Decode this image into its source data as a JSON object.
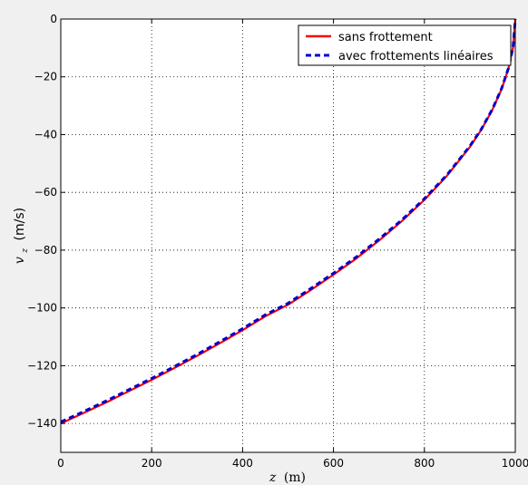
{
  "chart_data": {
    "type": "line",
    "title": "",
    "xlabel": "z (m)",
    "xlabel_var": "z",
    "xlabel_unit": "(m)",
    "ylabel": "v_z (m/s)",
    "ylabel_var": "v",
    "ylabel_sub": "z",
    "ylabel_unit": "(m/s)",
    "xlim": [
      0,
      1000
    ],
    "ylim": [
      -150,
      0
    ],
    "xticks": [
      0,
      200,
      400,
      600,
      800,
      1000
    ],
    "yticks": [
      -140,
      -120,
      -100,
      -80,
      -60,
      -40,
      -20,
      0
    ],
    "xtick_labels": [
      "0",
      "200",
      "400",
      "600",
      "800",
      "1000"
    ],
    "ytick_labels": [
      "−140",
      "−120",
      "−100",
      "−80",
      "−60",
      "−40",
      "−20",
      "0"
    ],
    "grid": true,
    "grid_style": "dotted",
    "legend_position": "top-right",
    "background": "#f0f0f0",
    "plot_background": "#ffffff",
    "series": [
      {
        "name": "sans frottement",
        "color": "#ff0000",
        "style": "solid",
        "x": [
          0,
          50,
          100,
          150,
          200,
          250,
          300,
          350,
          400,
          450,
          500,
          550,
          600,
          650,
          700,
          750,
          800,
          850,
          900,
          925,
          950,
          970,
          985,
          995,
          1000
        ],
        "y": [
          -140,
          -136.4,
          -132.7,
          -128.8,
          -124.9,
          -120.8,
          -116.6,
          -112.2,
          -107.7,
          -102.9,
          -98.9,
          -93.8,
          -88.5,
          -82.9,
          -76.7,
          -70.0,
          -62.6,
          -54.2,
          -44.3,
          -38.4,
          -31.3,
          -24.2,
          -17.1,
          -9.9,
          0
        ]
      },
      {
        "name": "avec frottements linéaires",
        "color": "#0000cc",
        "style": "dashed",
        "x": [
          0,
          50,
          100,
          150,
          200,
          250,
          300,
          350,
          400,
          450,
          500,
          550,
          600,
          650,
          700,
          750,
          800,
          850,
          900,
          925,
          950,
          970,
          985,
          995,
          1000
        ],
        "y": [
          -139.5,
          -135.9,
          -132.2,
          -128.3,
          -124.4,
          -120.3,
          -116.1,
          -111.7,
          -107.2,
          -102.4,
          -98.4,
          -93.3,
          -88.0,
          -82.4,
          -76.2,
          -69.6,
          -62.2,
          -53.9,
          -44.0,
          -38.2,
          -31.1,
          -24.0,
          -17.0,
          -9.8,
          0
        ]
      }
    ]
  }
}
